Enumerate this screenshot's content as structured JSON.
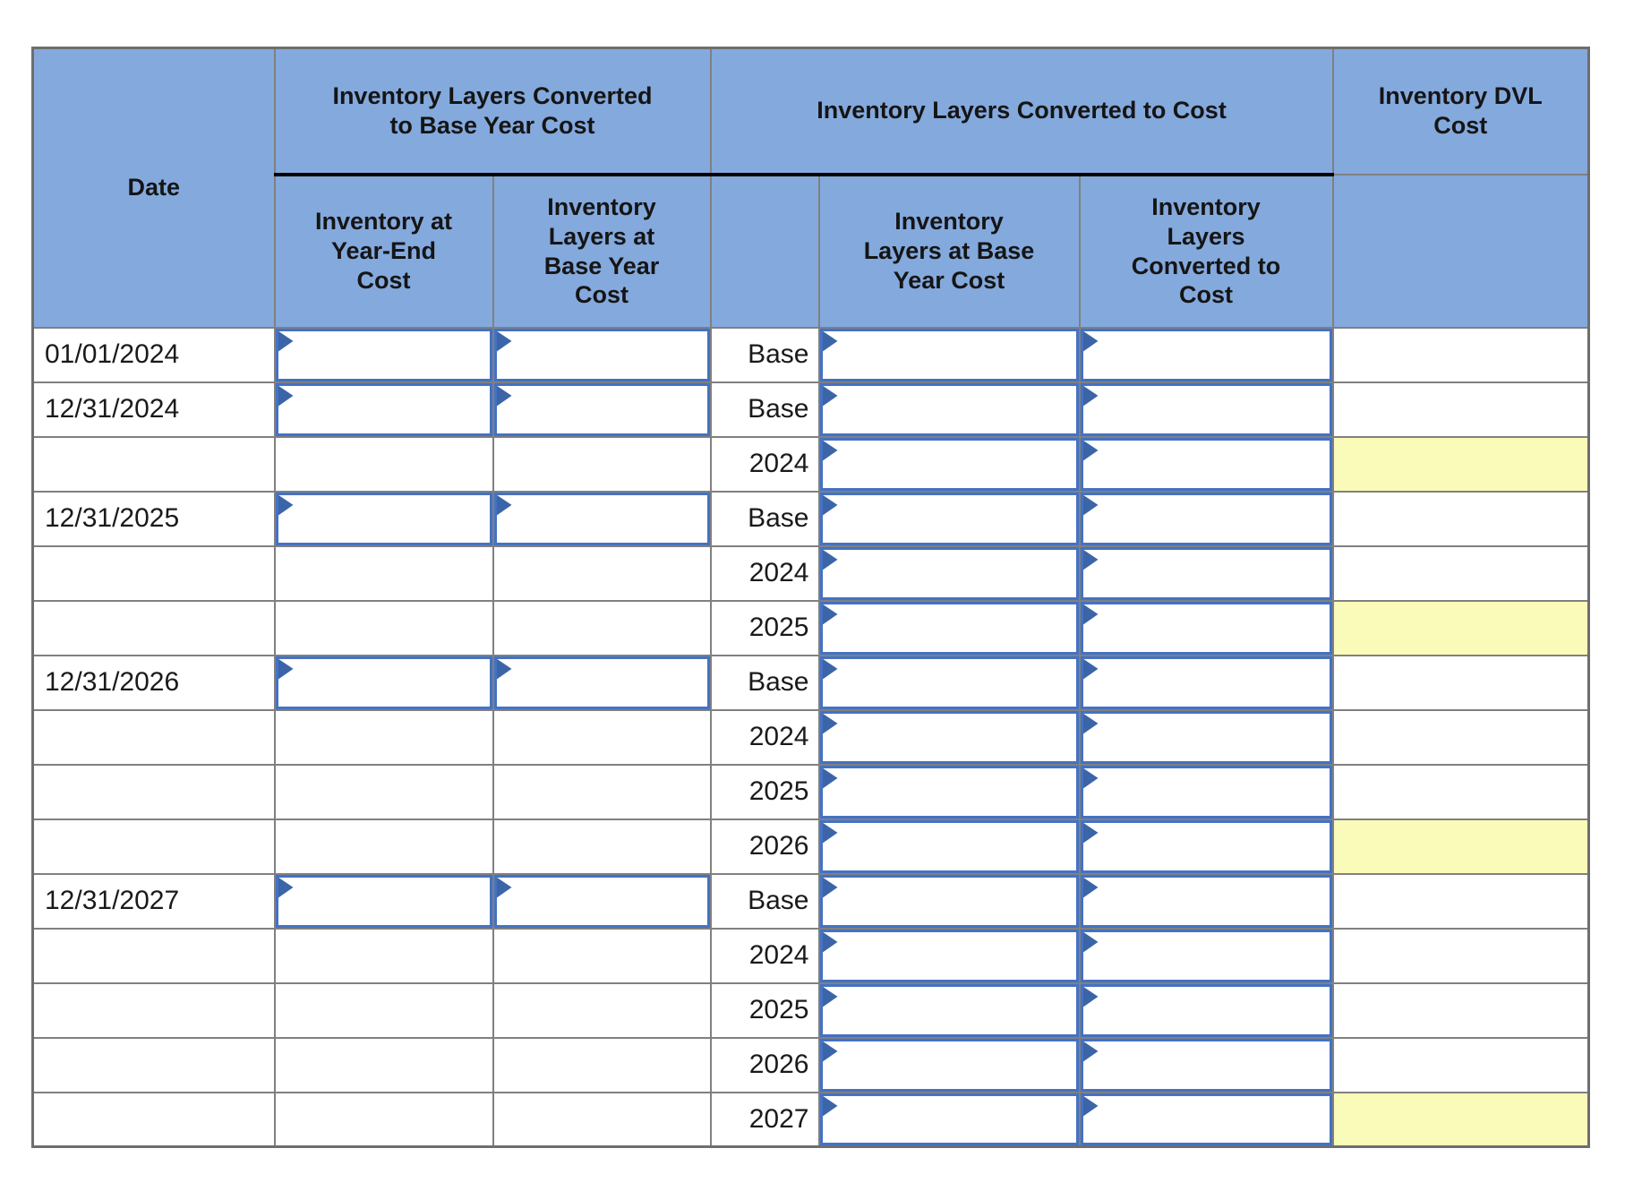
{
  "table": {
    "columns": {
      "date_header": "Date",
      "group_base": {
        "title": "Inventory Layers Converted\nto Base Year Cost",
        "sub_year_end": "Inventory at\nYear-End\nCost",
        "sub_base_year": "Inventory\nLayers at\nBase Year\nCost"
      },
      "group_cost": {
        "title": "Inventory Layers Converted to Cost",
        "sub_base_year": "Inventory\nLayers at Base\nYear Cost",
        "sub_converted": "Inventory\nLayers\nConverted to\nCost"
      },
      "dvl": {
        "title": "Inventory DVL\nCost"
      }
    },
    "rows": [
      {
        "date": "01/01/2024",
        "layer": "Base",
        "left_inputs": true,
        "highlight": false
      },
      {
        "date": "12/31/2024",
        "layer": "Base",
        "left_inputs": true,
        "highlight": false
      },
      {
        "date": "",
        "layer": "2024",
        "left_inputs": false,
        "highlight": true
      },
      {
        "date": "12/31/2025",
        "layer": "Base",
        "left_inputs": true,
        "highlight": false
      },
      {
        "date": "",
        "layer": "2024",
        "left_inputs": false,
        "highlight": false
      },
      {
        "date": "",
        "layer": "2025",
        "left_inputs": false,
        "highlight": true
      },
      {
        "date": "12/31/2026",
        "layer": "Base",
        "left_inputs": true,
        "highlight": false
      },
      {
        "date": "",
        "layer": "2024",
        "left_inputs": false,
        "highlight": false
      },
      {
        "date": "",
        "layer": "2025",
        "left_inputs": false,
        "highlight": false
      },
      {
        "date": "",
        "layer": "2026",
        "left_inputs": false,
        "highlight": true
      },
      {
        "date": "12/31/2027",
        "layer": "Base",
        "left_inputs": true,
        "highlight": false
      },
      {
        "date": "",
        "layer": "2024",
        "left_inputs": false,
        "highlight": false
      },
      {
        "date": "",
        "layer": "2025",
        "left_inputs": false,
        "highlight": false
      },
      {
        "date": "",
        "layer": "2026",
        "left_inputs": false,
        "highlight": false
      },
      {
        "date": "",
        "layer": "2027",
        "left_inputs": false,
        "highlight": true
      }
    ],
    "input_value": "",
    "colors": {
      "header_blue": "#84a9dd",
      "grid_gray": "#808080",
      "outer_gray": "#6e6e6e",
      "input_border": "#4472c4",
      "flag_blue": "#3b65a8",
      "highlight_yellow": "#fbfbb9"
    }
  }
}
